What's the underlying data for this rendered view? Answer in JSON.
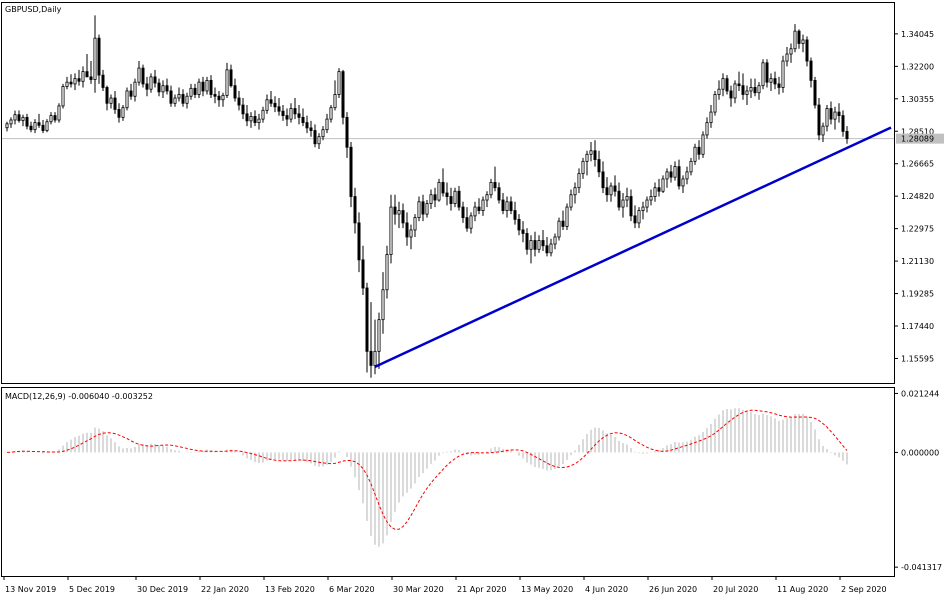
{
  "chart_data": {
    "type": "candlestick",
    "symbol_title": "GBPUSD,Daily",
    "price_panel": {
      "ylim": [
        1.142,
        1.358
      ],
      "y_ticks": [
        "1.34045",
        "1.32200",
        "1.30355",
        "1.28510",
        "1.26665",
        "1.24820",
        "1.22975",
        "1.21130",
        "1.19285",
        "1.17440",
        "1.15595"
      ],
      "current_price": "1.28089",
      "current_line_color": "#c0c0c0",
      "trendline": {
        "color": "#0000cc",
        "from": {
          "bar": 92,
          "price": 1.1512
        },
        "to": {
          "bar": 221,
          "price": 1.2872
        }
      }
    },
    "ohlc": [
      [
        1.2871,
        1.2905,
        1.285,
        1.2893
      ],
      [
        1.2893,
        1.293,
        1.287,
        1.2915
      ],
      [
        1.2915,
        1.2968,
        1.289,
        1.2945
      ],
      [
        1.2945,
        1.297,
        1.29,
        1.2912
      ],
      [
        1.2912,
        1.2945,
        1.288,
        1.293
      ],
      [
        1.293,
        1.295,
        1.2862,
        1.288
      ],
      [
        1.288,
        1.2905,
        1.2845,
        1.286
      ],
      [
        1.286,
        1.292,
        1.284,
        1.29
      ],
      [
        1.29,
        1.295,
        1.287,
        1.2885
      ],
      [
        1.2885,
        1.2915,
        1.284,
        1.2855
      ],
      [
        1.2855,
        1.292,
        1.2845,
        1.2905
      ],
      [
        1.2905,
        1.296,
        1.289,
        1.294
      ],
      [
        1.294,
        1.296,
        1.29,
        1.2915
      ],
      [
        1.2915,
        1.301,
        1.29,
        1.2995
      ],
      [
        1.2995,
        1.312,
        1.298,
        1.3105
      ],
      [
        1.3105,
        1.316,
        1.309,
        1.313
      ],
      [
        1.313,
        1.3175,
        1.31,
        1.312
      ],
      [
        1.312,
        1.318,
        1.3085,
        1.315
      ],
      [
        1.315,
        1.32,
        1.311,
        1.3135
      ],
      [
        1.3135,
        1.322,
        1.31,
        1.319
      ],
      [
        1.319,
        1.329,
        1.3175,
        1.316
      ],
      [
        1.316,
        1.325,
        1.312,
        1.3145
      ],
      [
        1.3145,
        1.351,
        1.307,
        1.338
      ],
      [
        1.338,
        1.34,
        1.312,
        1.317
      ],
      [
        1.317,
        1.32,
        1.308,
        1.31
      ],
      [
        1.31,
        1.311,
        1.297,
        1.301
      ],
      [
        1.301,
        1.306,
        1.298,
        1.304
      ],
      [
        1.304,
        1.308,
        1.295,
        1.2975
      ],
      [
        1.2975,
        1.301,
        1.29,
        1.293
      ],
      [
        1.293,
        1.3,
        1.291,
        1.2985
      ],
      [
        1.2985,
        1.31,
        1.297,
        1.308
      ],
      [
        1.308,
        1.312,
        1.303,
        1.305
      ],
      [
        1.305,
        1.315,
        1.302,
        1.313
      ],
      [
        1.313,
        1.325,
        1.311,
        1.321
      ],
      [
        1.321,
        1.323,
        1.31,
        1.312
      ],
      [
        1.312,
        1.316,
        1.305,
        1.309
      ],
      [
        1.309,
        1.318,
        1.307,
        1.316
      ],
      [
        1.316,
        1.32,
        1.31,
        1.3125
      ],
      [
        1.3125,
        1.315,
        1.305,
        1.3075
      ],
      [
        1.3075,
        1.314,
        1.304,
        1.311
      ],
      [
        1.311,
        1.315,
        1.306,
        1.308
      ],
      [
        1.308,
        1.311,
        1.299,
        1.301
      ],
      [
        1.301,
        1.306,
        1.299,
        1.304
      ],
      [
        1.304,
        1.31,
        1.302,
        1.306
      ],
      [
        1.306,
        1.309,
        1.299,
        1.301
      ],
      [
        1.301,
        1.307,
        1.298,
        1.305
      ],
      [
        1.305,
        1.312,
        1.303,
        1.3095
      ],
      [
        1.3095,
        1.312,
        1.304,
        1.306
      ],
      [
        1.306,
        1.315,
        1.304,
        1.313
      ],
      [
        1.313,
        1.316,
        1.305,
        1.308
      ],
      [
        1.308,
        1.316,
        1.306,
        1.314
      ],
      [
        1.314,
        1.317,
        1.304,
        1.306
      ],
      [
        1.306,
        1.31,
        1.301,
        1.305
      ],
      [
        1.305,
        1.308,
        1.299,
        1.303
      ],
      [
        1.303,
        1.307,
        1.299,
        1.3055
      ],
      [
        1.3055,
        1.324,
        1.304,
        1.32
      ],
      [
        1.32,
        1.323,
        1.31,
        1.311
      ],
      [
        1.311,
        1.315,
        1.302,
        1.304
      ],
      [
        1.304,
        1.308,
        1.297,
        1.3
      ],
      [
        1.3,
        1.304,
        1.292,
        1.295
      ],
      [
        1.295,
        1.3,
        1.288,
        1.291
      ],
      [
        1.291,
        1.296,
        1.287,
        1.2935
      ],
      [
        1.2935,
        1.297,
        1.288,
        1.29
      ],
      [
        1.29,
        1.295,
        1.286,
        1.292
      ],
      [
        1.292,
        1.299,
        1.29,
        1.297
      ],
      [
        1.297,
        1.306,
        1.295,
        1.303
      ],
      [
        1.303,
        1.308,
        1.299,
        1.301
      ],
      [
        1.301,
        1.305,
        1.296,
        1.299
      ],
      [
        1.299,
        1.304,
        1.294,
        1.2965
      ],
      [
        1.2965,
        1.3,
        1.291,
        1.294
      ],
      [
        1.294,
        1.298,
        1.288,
        1.292
      ],
      [
        1.292,
        1.301,
        1.29,
        1.298
      ],
      [
        1.298,
        1.304,
        1.292,
        1.295
      ],
      [
        1.295,
        1.3,
        1.289,
        1.293
      ],
      [
        1.293,
        1.298,
        1.288,
        1.29
      ],
      [
        1.29,
        1.294,
        1.284,
        1.287
      ],
      [
        1.287,
        1.291,
        1.282,
        1.2855
      ],
      [
        1.2855,
        1.289,
        1.276,
        1.278
      ],
      [
        1.278,
        1.284,
        1.275,
        1.282
      ],
      [
        1.282,
        1.288,
        1.28,
        1.286
      ],
      [
        1.286,
        1.295,
        1.284,
        1.292
      ],
      [
        1.292,
        1.3,
        1.29,
        1.2985
      ],
      [
        1.2985,
        1.314,
        1.297,
        1.306
      ],
      [
        1.306,
        1.321,
        1.304,
        1.319
      ],
      [
        1.319,
        1.32,
        1.289,
        1.293
      ],
      [
        1.293,
        1.296,
        1.27,
        1.276
      ],
      [
        1.276,
        1.279,
        1.242,
        1.248
      ],
      [
        1.248,
        1.253,
        1.227,
        1.233
      ],
      [
        1.233,
        1.239,
        1.205,
        1.212
      ],
      [
        1.212,
        1.22,
        1.192,
        1.196
      ],
      [
        1.196,
        1.199,
        1.148,
        1.16
      ],
      [
        1.16,
        1.188,
        1.145,
        1.152
      ],
      [
        1.152,
        1.178,
        1.147,
        1.16
      ],
      [
        1.16,
        1.182,
        1.15,
        1.178
      ],
      [
        1.178,
        1.205,
        1.17,
        1.195
      ],
      [
        1.195,
        1.22,
        1.19,
        1.215
      ],
      [
        1.215,
        1.249,
        1.21,
        1.242
      ],
      [
        1.242,
        1.249,
        1.232,
        1.238
      ],
      [
        1.238,
        1.245,
        1.23,
        1.24
      ],
      [
        1.24,
        1.244,
        1.23,
        1.233
      ],
      [
        1.233,
        1.239,
        1.22,
        1.225
      ],
      [
        1.225,
        1.232,
        1.218,
        1.229
      ],
      [
        1.229,
        1.238,
        1.225,
        1.236
      ],
      [
        1.236,
        1.248,
        1.234,
        1.245
      ],
      [
        1.245,
        1.249,
        1.234,
        1.238
      ],
      [
        1.238,
        1.246,
        1.236,
        1.244
      ],
      [
        1.244,
        1.252,
        1.241,
        1.249
      ],
      [
        1.249,
        1.253,
        1.242,
        1.246
      ],
      [
        1.246,
        1.258,
        1.245,
        1.256
      ],
      [
        1.256,
        1.264,
        1.248,
        1.25
      ],
      [
        1.25,
        1.256,
        1.243,
        1.248
      ],
      [
        1.248,
        1.253,
        1.24,
        1.244
      ],
      [
        1.244,
        1.253,
        1.242,
        1.251
      ],
      [
        1.251,
        1.254,
        1.24,
        1.242
      ],
      [
        1.242,
        1.245,
        1.233,
        1.236
      ],
      [
        1.236,
        1.242,
        1.228,
        1.23
      ],
      [
        1.23,
        1.239,
        1.227,
        1.237
      ],
      [
        1.237,
        1.245,
        1.234,
        1.242
      ],
      [
        1.242,
        1.247,
        1.238,
        1.24
      ],
      [
        1.24,
        1.248,
        1.237,
        1.246
      ],
      [
        1.246,
        1.251,
        1.242,
        1.249
      ],
      [
        1.249,
        1.258,
        1.247,
        1.256
      ],
      [
        1.256,
        1.265,
        1.251,
        1.253
      ],
      [
        1.253,
        1.256,
        1.244,
        1.246
      ],
      [
        1.246,
        1.25,
        1.238,
        1.24
      ],
      [
        1.24,
        1.248,
        1.236,
        1.245
      ],
      [
        1.245,
        1.248,
        1.238,
        1.24
      ],
      [
        1.24,
        1.245,
        1.232,
        1.235
      ],
      [
        1.235,
        1.238,
        1.226,
        1.229
      ],
      [
        1.229,
        1.234,
        1.222,
        1.227
      ],
      [
        1.227,
        1.23,
        1.215,
        1.218
      ],
      [
        1.218,
        1.226,
        1.21,
        1.223
      ],
      [
        1.223,
        1.228,
        1.214,
        1.218
      ],
      [
        1.218,
        1.226,
        1.216,
        1.223
      ],
      [
        1.223,
        1.229,
        1.217,
        1.22
      ],
      [
        1.22,
        1.225,
        1.214,
        1.216
      ],
      [
        1.216,
        1.224,
        1.214,
        1.221
      ],
      [
        1.221,
        1.227,
        1.218,
        1.225
      ],
      [
        1.225,
        1.236,
        1.223,
        1.234
      ],
      [
        1.234,
        1.24,
        1.229,
        1.231
      ],
      [
        1.231,
        1.244,
        1.229,
        1.242
      ],
      [
        1.242,
        1.252,
        1.24,
        1.249
      ],
      [
        1.249,
        1.256,
        1.244,
        1.253
      ],
      [
        1.253,
        1.264,
        1.25,
        1.261
      ],
      [
        1.261,
        1.27,
        1.258,
        1.268
      ],
      [
        1.268,
        1.274,
        1.26,
        1.272
      ],
      [
        1.272,
        1.279,
        1.268,
        1.274
      ],
      [
        1.274,
        1.28,
        1.265,
        1.269
      ],
      [
        1.269,
        1.274,
        1.259,
        1.262
      ],
      [
        1.262,
        1.268,
        1.25,
        1.253
      ],
      [
        1.253,
        1.259,
        1.245,
        1.249
      ],
      [
        1.249,
        1.256,
        1.245,
        1.254
      ],
      [
        1.254,
        1.26,
        1.248,
        1.251
      ],
      [
        1.251,
        1.256,
        1.24,
        1.242
      ],
      [
        1.242,
        1.25,
        1.236,
        1.246
      ],
      [
        1.246,
        1.253,
        1.242,
        1.248
      ],
      [
        1.248,
        1.252,
        1.234,
        1.237
      ],
      [
        1.237,
        1.243,
        1.23,
        1.233
      ],
      [
        1.233,
        1.242,
        1.23,
        1.24
      ],
      [
        1.24,
        1.245,
        1.235,
        1.242
      ],
      [
        1.242,
        1.248,
        1.239,
        1.246
      ],
      [
        1.246,
        1.252,
        1.243,
        1.248
      ],
      [
        1.248,
        1.256,
        1.245,
        1.253
      ],
      [
        1.253,
        1.258,
        1.248,
        1.251
      ],
      [
        1.251,
        1.26,
        1.25,
        1.258
      ],
      [
        1.258,
        1.264,
        1.253,
        1.262
      ],
      [
        1.262,
        1.266,
        1.256,
        1.259
      ],
      [
        1.259,
        1.268,
        1.257,
        1.265
      ],
      [
        1.265,
        1.269,
        1.252,
        1.254
      ],
      [
        1.254,
        1.26,
        1.25,
        1.258
      ],
      [
        1.258,
        1.265,
        1.255,
        1.262
      ],
      [
        1.262,
        1.27,
        1.26,
        1.268
      ],
      [
        1.268,
        1.278,
        1.266,
        1.276
      ],
      [
        1.276,
        1.28,
        1.269,
        1.272
      ],
      [
        1.272,
        1.285,
        1.27,
        1.283
      ],
      [
        1.283,
        1.293,
        1.281,
        1.29
      ],
      [
        1.29,
        1.3,
        1.287,
        1.296
      ],
      [
        1.296,
        1.308,
        1.294,
        1.306
      ],
      [
        1.306,
        1.314,
        1.303,
        1.309
      ],
      [
        1.309,
        1.318,
        1.305,
        1.315
      ],
      [
        1.315,
        1.317,
        1.306,
        1.308
      ],
      [
        1.308,
        1.311,
        1.299,
        1.304
      ],
      [
        1.304,
        1.314,
        1.301,
        1.312
      ],
      [
        1.312,
        1.319,
        1.308,
        1.311
      ],
      [
        1.311,
        1.318,
        1.303,
        1.306
      ],
      [
        1.306,
        1.311,
        1.3,
        1.308
      ],
      [
        1.308,
        1.315,
        1.304,
        1.31
      ],
      [
        1.31,
        1.315,
        1.305,
        1.307
      ],
      [
        1.307,
        1.313,
        1.303,
        1.311
      ],
      [
        1.311,
        1.326,
        1.309,
        1.324
      ],
      [
        1.324,
        1.326,
        1.31,
        1.313
      ],
      [
        1.313,
        1.318,
        1.308,
        1.315
      ],
      [
        1.315,
        1.319,
        1.309,
        1.312
      ],
      [
        1.312,
        1.316,
        1.306,
        1.31
      ],
      [
        1.31,
        1.328,
        1.307,
        1.325
      ],
      [
        1.325,
        1.333,
        1.322,
        1.329
      ],
      [
        1.329,
        1.335,
        1.324,
        1.332
      ],
      [
        1.332,
        1.346,
        1.33,
        1.342
      ],
      [
        1.342,
        1.343,
        1.332,
        1.335
      ],
      [
        1.335,
        1.34,
        1.33,
        1.337
      ],
      [
        1.337,
        1.339,
        1.322,
        1.325
      ],
      [
        1.325,
        1.327,
        1.31,
        1.314
      ],
      [
        1.314,
        1.316,
        1.298,
        1.3
      ],
      [
        1.3,
        1.304,
        1.28,
        1.283
      ],
      [
        1.283,
        1.29,
        1.279,
        1.288
      ],
      [
        1.288,
        1.3,
        1.285,
        1.298
      ],
      [
        1.298,
        1.302,
        1.289,
        1.292
      ],
      [
        1.292,
        1.299,
        1.286,
        1.296
      ],
      [
        1.296,
        1.301,
        1.29,
        1.294
      ],
      [
        1.294,
        1.297,
        1.282,
        1.285
      ],
      [
        1.285,
        1.288,
        1.278,
        1.2809
      ]
    ],
    "x_tick_labels": [
      "13 Nov 2019",
      "5 Dec 2019",
      "30 Dec 2019",
      "22 Jan 2020",
      "13 Feb 2020",
      "6 Mar 2020",
      "30 Mar 2020",
      "21 Apr 2020",
      "13 May 2020",
      "4 Jun 2020",
      "26 Jun 2020",
      "20 Jul 2020",
      "11 Aug 2020",
      "2 Sep 2020"
    ],
    "x_tick_bars": [
      0,
      16,
      33,
      49,
      65,
      81,
      97,
      113,
      129,
      145,
      161,
      177,
      193,
      209
    ],
    "macd_panel": {
      "label": "MACD(12,26,9) -0.006040 -0.003252",
      "ylim": [
        -0.0445,
        0.0232
      ],
      "y_ticks": [
        "0.021244",
        "0.000000",
        "-0.041317"
      ],
      "histogram_color": "#c0c0c0",
      "signal_color": "#ff0000"
    }
  }
}
